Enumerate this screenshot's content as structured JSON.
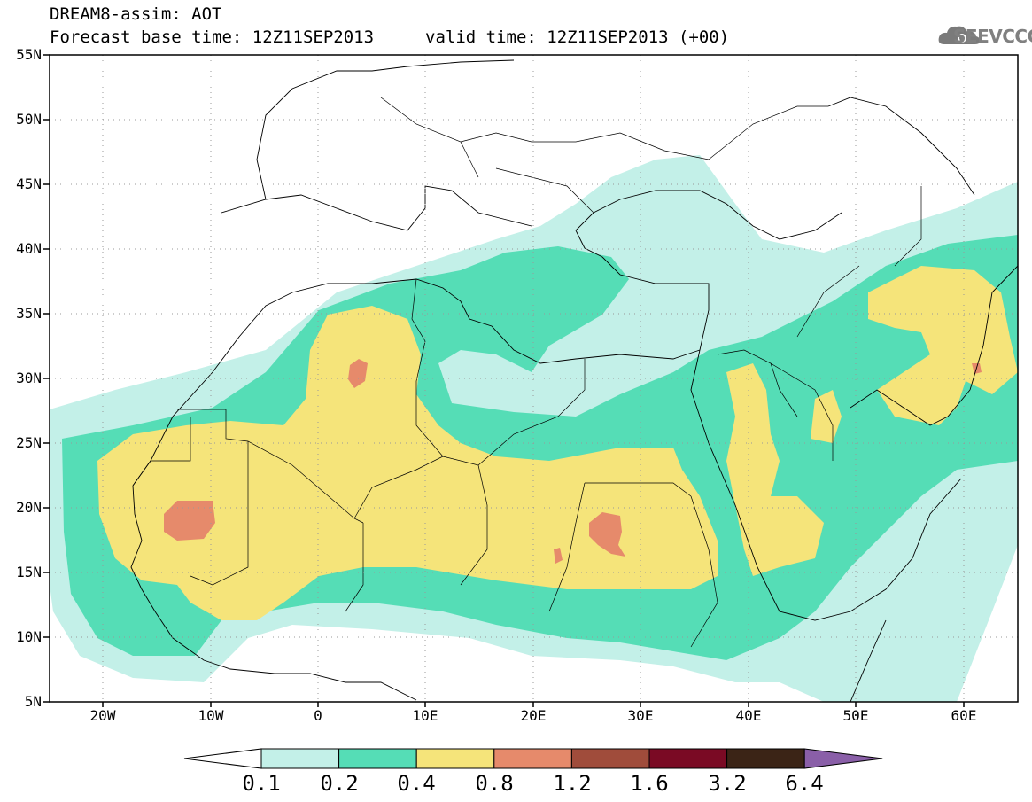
{
  "header": {
    "title": "DREAM8-assim: AOT",
    "base_time": "Forecast base time: 12Z11SEP2013",
    "valid_time": "valid time: 12Z11SEP2013 (+00)",
    "logo_text": "SEEVCCC"
  },
  "map": {
    "lat_labels": [
      "55N",
      "50N",
      "45N",
      "40N",
      "35N",
      "30N",
      "25N",
      "20N",
      "15N",
      "10N",
      "5N"
    ],
    "lon_labels": [
      "20W",
      "10W",
      "0",
      "10E",
      "20E",
      "30E",
      "40E",
      "50E",
      "60E"
    ],
    "projection": "lat-lon",
    "extent": {
      "lon": [
        -25,
        65
      ],
      "lat": [
        5,
        55
      ]
    }
  },
  "legend": {
    "labels": [
      "0.1",
      "0.2",
      "0.4",
      "0.8",
      "1.2",
      "1.6",
      "3.2",
      "6.4"
    ],
    "colors": [
      "#ffffff",
      "#c3f0e8",
      "#55ddb6",
      "#f5e47a",
      "#e68a6b",
      "#a04c3b",
      "#7a0a24",
      "#3b2416",
      "#8a5fa8"
    ]
  }
}
